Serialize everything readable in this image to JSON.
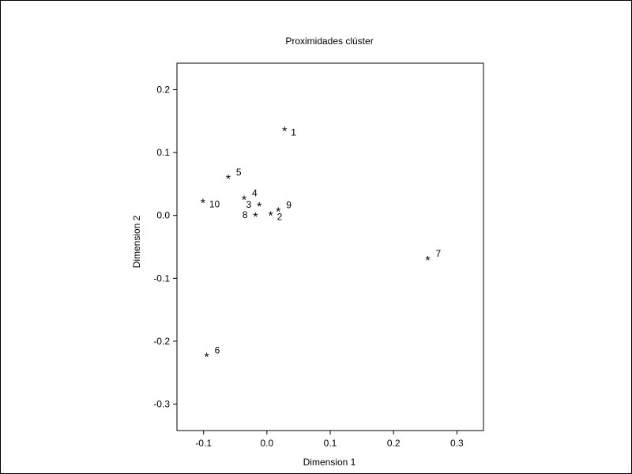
{
  "chart_data": {
    "type": "scatter",
    "title": "Proximidades clúster",
    "xlabel": "Dimension 1",
    "ylabel": "Dimension 2",
    "xlim": [
      -0.142,
      0.342
    ],
    "ylim": [
      -0.342,
      0.242
    ],
    "xticks": [
      -0.1,
      0,
      0.1,
      0.2,
      0.3
    ],
    "xtick_labels": [
      "-0.1",
      "0.0",
      "0.1",
      "0.2",
      "0.3"
    ],
    "yticks": [
      0.2,
      0.1,
      0.0,
      -0.1,
      -0.2,
      -0.3
    ],
    "ytick_labels": [
      "0.2",
      "0.1",
      "0.0",
      "-0.1",
      "-0.2",
      "-0.3"
    ],
    "grid": false,
    "marker": "*",
    "points": [
      {
        "label": "1",
        "x": 0.028,
        "y": 0.137,
        "label_pos": "below-right"
      },
      {
        "label": "2",
        "x": 0.006,
        "y": 0.003,
        "label_pos": "below-right"
      },
      {
        "label": "3",
        "x": -0.012,
        "y": 0.017,
        "label_pos": "left"
      },
      {
        "label": "4",
        "x": -0.036,
        "y": 0.028,
        "label_pos": "above-right"
      },
      {
        "label": "5",
        "x": -0.061,
        "y": 0.061,
        "label_pos": "above-right"
      },
      {
        "label": "6",
        "x": -0.095,
        "y": -0.222,
        "label_pos": "above-right"
      },
      {
        "label": "7",
        "x": 0.254,
        "y": -0.068,
        "label_pos": "above-right"
      },
      {
        "label": "8",
        "x": -0.018,
        "y": 0.001,
        "label_pos": "left"
      },
      {
        "label": "9",
        "x": 0.018,
        "y": 0.009,
        "label_pos": "above-right"
      },
      {
        "label": "10",
        "x": -0.101,
        "y": 0.023,
        "label_pos": "below-right"
      }
    ]
  }
}
